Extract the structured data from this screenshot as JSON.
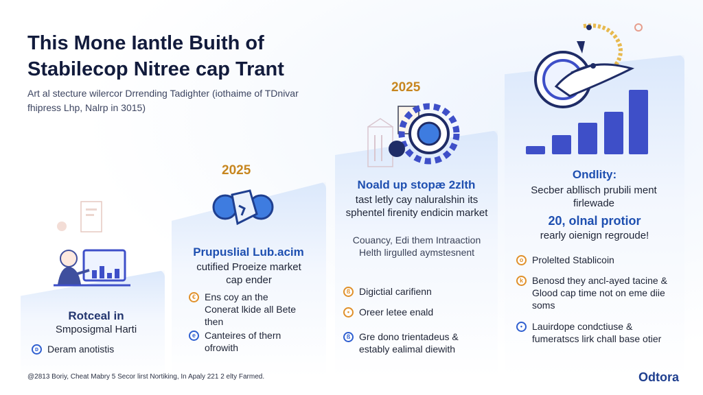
{
  "title": "This Mone Iantle Buith of Stabilecop Nitree cap Trant",
  "subtitle": "Art al stecture wilercor Drrending Tadighter (iothaime of TDnivar fhipress Lhp, Nalrp in 3015)",
  "panels": [
    {
      "year": "",
      "heading": "Rotceal in",
      "body": "Smposigmal Harti",
      "items": [
        {
          "label": "Deram anotistis",
          "marker": "blue"
        }
      ]
    },
    {
      "year": "2025",
      "heading": "Prupuslial Lub.acim",
      "body": "cutified Proeize market cap ender",
      "items": [
        {
          "label": "Ens coy an the Conerat lkide all Bete then",
          "marker": "orange"
        },
        {
          "label": "Canteires of thern ofrowith",
          "marker": "blue"
        }
      ]
    },
    {
      "year": "2025",
      "heading": "Noald up stopæ 2zlth",
      "body": "tast letly cay naluralshin its sphentel firenity endicin market",
      "muted": "Couancy, Edi them Intraaction Helth lirgulled aymstesnent",
      "items": [
        {
          "label": "Digictial carifienn",
          "marker": "orange"
        },
        {
          "label": "Oreer letee enald",
          "marker": "orange"
        },
        {
          "label": "Gre dono trientadeus & estably ealimal diewith",
          "marker": "blue"
        }
      ]
    },
    {
      "year": "",
      "heading": "Ondlity:",
      "body": "Secber abllisch prubili ment firlewade",
      "heading2": "20, olnal protior",
      "body2": "rearly oienign regroude!",
      "items": [
        {
          "label": "Prolelted Stablicoin",
          "marker": "orange"
        },
        {
          "label": "Benosd they ancl-ayed tacine & Glood cap time not on eme diie soms",
          "marker": "orange"
        },
        {
          "label": "Lauirdope condctiuse & fumeratscs lirk chall base otier",
          "marker": "blue"
        }
      ]
    }
  ],
  "footer": "@2813 Boriy, Cheat Mabry 5 Secor lirst Nortiking, In Apaly 221 2 elty Farmed.",
  "brand": "Odtora",
  "icons": [
    "person-at-desk-icon",
    "coin-hands-icon",
    "gear-coin-icon",
    "rocket-chart-icon"
  ],
  "colors": {
    "accent": "#1e4fb0",
    "year": "#c7861f",
    "bar": "#3e4fc8",
    "panel": "#dbe8fb"
  }
}
